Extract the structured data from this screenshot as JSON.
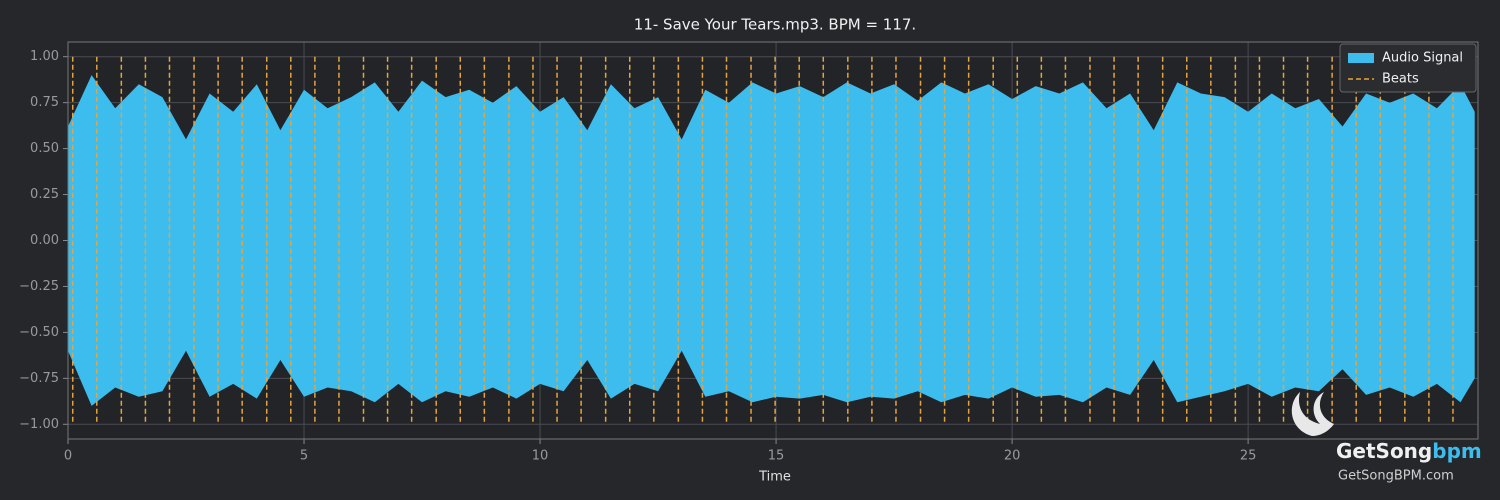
{
  "chart_data": {
    "type": "waveform",
    "title": "11- Save Your Tears.mp3. BPM = 117.",
    "xlabel": "Time",
    "xlim": [
      0,
      29.87
    ],
    "ylim": [
      -1.08,
      1.08
    ],
    "xticks": [
      0,
      5,
      10,
      15,
      20,
      25
    ],
    "yticks": [
      {
        "value": -1,
        "label": "−1.00"
      },
      {
        "value": -0.75,
        "label": "−0.75"
      },
      {
        "value": -0.5,
        "label": "−0.50"
      },
      {
        "value": -0.25,
        "label": "−0.25"
      },
      {
        "value": 0,
        "label": "0.00"
      },
      {
        "value": 0.25,
        "label": "0.25"
      },
      {
        "value": 0.5,
        "label": "0.50"
      },
      {
        "value": 0.75,
        "label": "0.75"
      },
      {
        "value": 1,
        "label": "1.00"
      }
    ],
    "grid": true,
    "legend": "upper right",
    "series": [
      {
        "name": "Audio Signal",
        "color": "#3dbdee",
        "x": [
          0,
          0.5,
          1,
          1.5,
          2,
          2.5,
          3,
          3.5,
          4,
          4.5,
          5,
          5.5,
          6,
          6.5,
          7,
          7.5,
          8,
          8.5,
          9,
          9.5,
          10,
          10.5,
          11,
          11.5,
          12,
          12.5,
          13,
          13.5,
          14,
          14.5,
          15,
          15.5,
          16,
          16.5,
          17,
          17.5,
          18,
          18.5,
          19,
          19.5,
          20,
          20.5,
          21,
          21.5,
          22,
          22.5,
          23,
          23.5,
          24,
          24.5,
          25,
          25.5,
          26,
          26.5,
          27,
          27.5,
          28,
          28.5,
          29,
          29.5,
          29.8
        ],
        "values": [
          0.62,
          0.9,
          0.72,
          0.85,
          0.78,
          0.55,
          0.8,
          0.7,
          0.85,
          0.6,
          0.82,
          0.72,
          0.78,
          0.86,
          0.7,
          0.87,
          0.78,
          0.82,
          0.75,
          0.84,
          0.7,
          0.78,
          0.6,
          0.85,
          0.72,
          0.78,
          0.55,
          0.82,
          0.75,
          0.86,
          0.8,
          0.84,
          0.78,
          0.86,
          0.8,
          0.85,
          0.76,
          0.86,
          0.8,
          0.85,
          0.77,
          0.84,
          0.8,
          0.86,
          0.72,
          0.8,
          0.6,
          0.86,
          0.8,
          0.78,
          0.7,
          0.8,
          0.72,
          0.77,
          0.62,
          0.8,
          0.75,
          0.8,
          0.72,
          0.85,
          0.7
        ],
        "lower": [
          -0.6,
          -0.9,
          -0.8,
          -0.85,
          -0.82,
          -0.6,
          -0.85,
          -0.78,
          -0.86,
          -0.65,
          -0.85,
          -0.8,
          -0.82,
          -0.88,
          -0.78,
          -0.88,
          -0.82,
          -0.85,
          -0.8,
          -0.86,
          -0.78,
          -0.82,
          -0.65,
          -0.86,
          -0.78,
          -0.82,
          -0.6,
          -0.85,
          -0.82,
          -0.88,
          -0.85,
          -0.86,
          -0.84,
          -0.88,
          -0.85,
          -0.86,
          -0.82,
          -0.88,
          -0.84,
          -0.86,
          -0.8,
          -0.85,
          -0.84,
          -0.88,
          -0.8,
          -0.84,
          -0.65,
          -0.88,
          -0.85,
          -0.82,
          -0.78,
          -0.85,
          -0.8,
          -0.82,
          -0.7,
          -0.84,
          -0.8,
          -0.85,
          -0.78,
          -0.88,
          -0.75
        ]
      },
      {
        "name": "Beats",
        "color": "#e8a33a",
        "x": [
          0.1,
          0.61,
          1.13,
          1.64,
          2.15,
          2.67,
          3.18,
          3.69,
          4.21,
          4.72,
          5.23,
          5.74,
          6.26,
          6.77,
          7.28,
          7.8,
          8.31,
          8.82,
          9.34,
          9.85,
          10.36,
          10.87,
          11.39,
          11.9,
          12.41,
          12.93,
          13.44,
          13.95,
          14.47,
          14.98,
          15.49,
          16.0,
          16.52,
          17.03,
          17.54,
          18.06,
          18.57,
          19.08,
          19.6,
          20.11,
          20.62,
          21.13,
          21.65,
          22.16,
          22.67,
          23.19,
          23.7,
          24.21,
          24.73,
          25.24,
          25.75,
          26.26,
          26.78,
          27.29,
          27.8,
          28.32,
          28.83,
          29.34
        ]
      }
    ]
  },
  "logo": {
    "name": "GetSong",
    "accent": "bpm",
    "url": "GetSongBPM.com"
  }
}
